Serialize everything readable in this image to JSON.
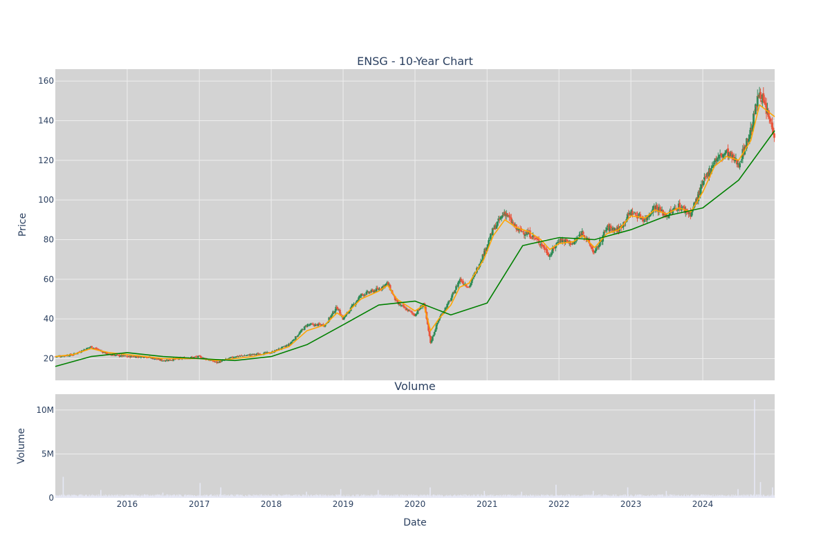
{
  "chart_data": [
    {
      "type": "candlestick",
      "title": "ENSG - 10-Year Chart",
      "xlabel": "",
      "ylabel": "Price",
      "xlim": [
        "2015-01-01",
        "2024-12-31"
      ],
      "ylim": [
        9,
        166
      ],
      "yticks": [
        20,
        40,
        60,
        80,
        100,
        120,
        140,
        160
      ],
      "grid": true,
      "plot_background": "#d3d3d3",
      "gridline_color": "#eeeeee",
      "increasing_color": "#2e8b57",
      "decreasing_color": "#e8553d",
      "series": [
        {
          "kind": "close-price-path",
          "x": [
            "2015-01-01",
            "2015-04-01",
            "2015-07-01",
            "2015-10-01",
            "2016-01-01",
            "2016-04-01",
            "2016-07-01",
            "2016-10-01",
            "2017-01-01",
            "2017-04-01",
            "2017-07-01",
            "2017-10-01",
            "2018-01-01",
            "2018-04-01",
            "2018-07-01",
            "2018-10-01",
            "2018-12-01",
            "2019-01-01",
            "2019-04-01",
            "2019-07-01",
            "2019-08-15",
            "2019-10-01",
            "2020-01-01",
            "2020-02-15",
            "2020-03-20",
            "2020-05-01",
            "2020-07-01",
            "2020-08-15",
            "2020-10-01",
            "2020-12-15",
            "2021-02-01",
            "2021-04-01",
            "2021-06-01",
            "2021-08-01",
            "2021-10-01",
            "2021-11-15",
            "2022-01-01",
            "2022-03-15",
            "2022-05-01",
            "2022-07-01",
            "2022-09-01",
            "2022-11-01",
            "2023-01-01",
            "2023-03-15",
            "2023-05-01",
            "2023-07-01",
            "2023-09-01",
            "2023-11-01",
            "2024-01-01",
            "2024-03-01",
            "2024-05-01",
            "2024-07-01",
            "2024-09-01",
            "2024-10-15",
            "2024-12-31"
          ],
          "y": [
            21,
            22,
            26,
            22,
            21,
            21,
            19,
            20,
            21,
            18,
            21,
            22,
            23,
            27,
            37,
            37,
            46,
            40,
            52,
            55,
            58,
            48,
            42,
            48,
            28,
            40,
            50,
            60,
            56,
            73,
            85,
            94,
            85,
            83,
            78,
            72,
            80,
            78,
            84,
            73,
            86,
            85,
            94,
            90,
            97,
            92,
            97,
            93,
            108,
            120,
            124,
            118,
            135,
            155,
            133
          ]
        },
        {
          "name": "",
          "kind": "short-moving-average",
          "color": "#ffa500",
          "x": [
            "2015-01-01",
            "2015-04-01",
            "2015-07-01",
            "2015-10-01",
            "2016-01-01",
            "2016-04-01",
            "2016-07-01",
            "2016-10-01",
            "2017-01-01",
            "2017-04-01",
            "2017-07-01",
            "2017-10-01",
            "2018-01-01",
            "2018-04-01",
            "2018-07-01",
            "2018-10-01",
            "2018-12-01",
            "2019-01-01",
            "2019-04-01",
            "2019-07-01",
            "2019-08-15",
            "2019-10-01",
            "2020-01-01",
            "2020-02-15",
            "2020-03-20",
            "2020-05-01",
            "2020-07-01",
            "2020-08-15",
            "2020-10-01",
            "2020-12-15",
            "2021-02-01",
            "2021-04-01",
            "2021-06-01",
            "2021-08-01",
            "2021-10-01",
            "2021-11-15",
            "2022-01-01",
            "2022-03-15",
            "2022-05-01",
            "2022-07-01",
            "2022-09-01",
            "2022-11-01",
            "2023-01-01",
            "2023-03-15",
            "2023-05-01",
            "2023-07-01",
            "2023-09-01",
            "2023-11-01",
            "2024-01-01",
            "2024-03-01",
            "2024-05-01",
            "2024-07-01",
            "2024-09-01",
            "2024-10-15",
            "2024-12-31"
          ],
          "y": [
            21,
            22,
            25,
            23,
            22,
            21,
            20,
            20,
            20,
            19,
            20,
            21,
            23,
            26,
            34,
            37,
            43,
            41,
            50,
            54,
            57,
            50,
            44,
            47,
            34,
            40,
            47,
            56,
            58,
            70,
            82,
            90,
            86,
            84,
            80,
            75,
            78,
            79,
            82,
            76,
            83,
            85,
            92,
            91,
            95,
            93,
            96,
            94,
            104,
            117,
            122,
            120,
            130,
            148,
            142
          ]
        },
        {
          "name": "",
          "kind": "long-moving-average",
          "color": "#008000",
          "x": [
            "2015-01-01",
            "2015-07-01",
            "2016-01-01",
            "2016-07-01",
            "2017-01-01",
            "2017-07-01",
            "2018-01-01",
            "2018-07-01",
            "2019-01-01",
            "2019-07-01",
            "2020-01-01",
            "2020-07-01",
            "2021-01-01",
            "2021-07-01",
            "2022-01-01",
            "2022-07-01",
            "2023-01-01",
            "2023-07-01",
            "2024-01-01",
            "2024-07-01",
            "2024-12-31"
          ],
          "y": [
            16,
            21,
            23,
            21,
            20,
            19,
            21,
            27,
            37,
            47,
            49,
            42,
            48,
            77,
            81,
            80,
            85,
            92,
            96,
            110,
            135
          ]
        }
      ]
    },
    {
      "type": "bar",
      "title": "Volume",
      "xlabel": "Date",
      "ylabel": "Volume",
      "xlim": [
        "2015-01-01",
        "2024-12-31"
      ],
      "ylim": [
        0,
        11800000
      ],
      "yticks": [
        0,
        5000000,
        10000000
      ],
      "ytick_labels": [
        "0",
        "5M",
        "10M"
      ],
      "xtick_labels": [
        "2016",
        "2017",
        "2018",
        "2019",
        "2020",
        "2021",
        "2022",
        "2023",
        "2024"
      ],
      "grid": true,
      "bar_color": "#e6e8f5",
      "baseline_volume": 300000,
      "spikes": [
        {
          "x": "2015-02-10",
          "value": 2400000
        },
        {
          "x": "2015-08-20",
          "value": 900000
        },
        {
          "x": "2016-06-30",
          "value": 600000
        },
        {
          "x": "2017-01-05",
          "value": 1700000
        },
        {
          "x": "2017-04-20",
          "value": 1200000
        },
        {
          "x": "2018-06-29",
          "value": 700000
        },
        {
          "x": "2018-12-20",
          "value": 1000000
        },
        {
          "x": "2019-06-28",
          "value": 900000
        },
        {
          "x": "2020-03-18",
          "value": 1200000
        },
        {
          "x": "2020-12-18",
          "value": 800000
        },
        {
          "x": "2021-06-25",
          "value": 700000
        },
        {
          "x": "2021-12-17",
          "value": 1500000
        },
        {
          "x": "2022-06-24",
          "value": 800000
        },
        {
          "x": "2022-12-16",
          "value": 1200000
        },
        {
          "x": "2023-06-30",
          "value": 800000
        },
        {
          "x": "2024-06-28",
          "value": 1000000
        },
        {
          "x": "2024-09-20",
          "value": 11200000
        },
        {
          "x": "2024-10-20",
          "value": 1800000
        },
        {
          "x": "2024-12-20",
          "value": 1200000
        }
      ]
    }
  ]
}
